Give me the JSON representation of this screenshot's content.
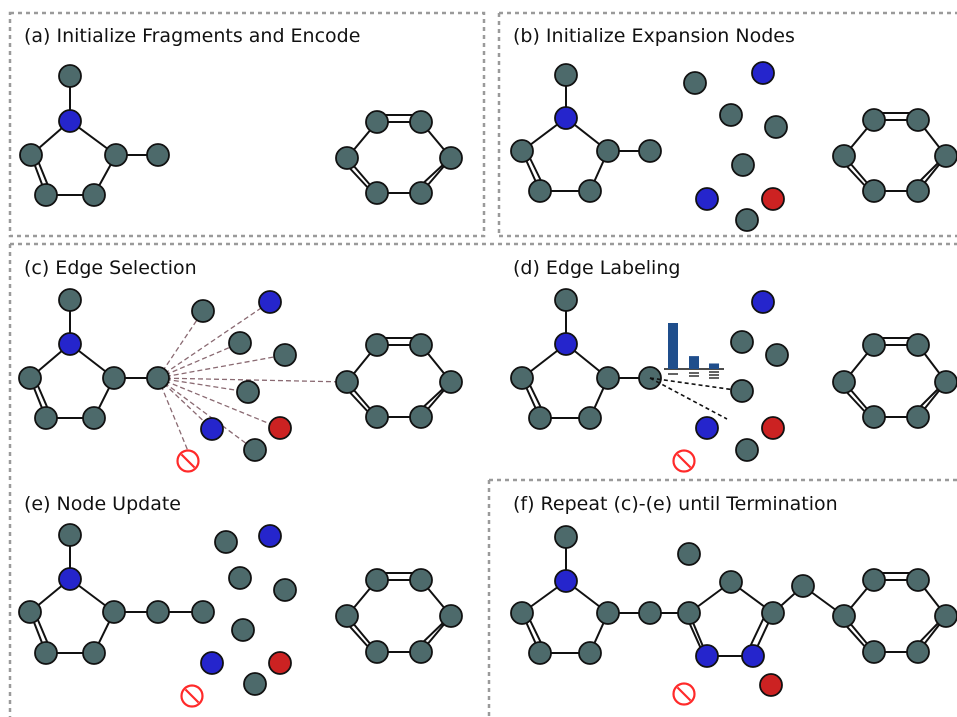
{
  "colors": {
    "carbon": "#4d6a6b",
    "nitrogen": "#2525cc",
    "oxygen": "#cc2222",
    "bar": "#1f4e8c",
    "forbidden": "#ff2a2a",
    "border": "#9a9a9a"
  },
  "panels": {
    "a": {
      "title": "(a) Initialize Fragments and Encode"
    },
    "b": {
      "title": "(b) Initialize Expansion Nodes"
    },
    "c": {
      "title": "(c) Edge Selection"
    },
    "d": {
      "title": "(d) Edge Labeling"
    },
    "e": {
      "title": "(e) Node Update"
    },
    "f": {
      "title": "(f) Repeat (c)-(e) until Termination"
    }
  },
  "edge_label_bars": {
    "types": [
      "single",
      "double",
      "triple"
    ],
    "values": [
      1.0,
      0.28,
      0.12
    ]
  },
  "icons": [
    "forbidden-icon",
    "bar-chart-icon"
  ]
}
